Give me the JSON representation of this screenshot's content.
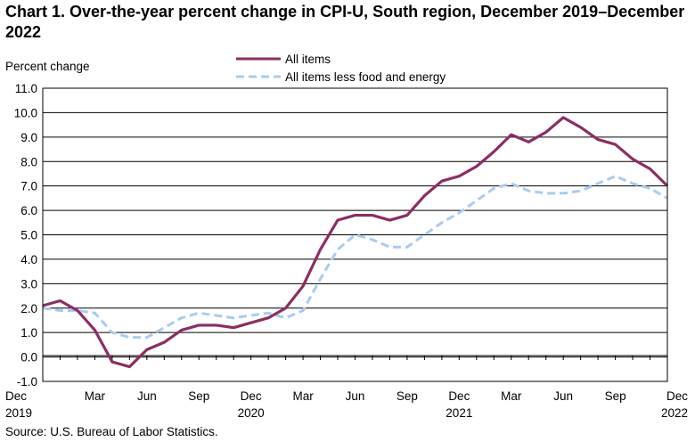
{
  "title": "Chart 1. Over-the-year percent change in CPI-U, South region, December 2019–December 2022",
  "source": "Source: U.S. Bureau of Labor Statistics.",
  "chart_data": {
    "type": "line",
    "ylabel": "Percent change",
    "ylim": [
      -1.0,
      11.0
    ],
    "yticks": [
      "-1.0",
      "0.0",
      "1.0",
      "2.0",
      "3.0",
      "4.0",
      "5.0",
      "6.0",
      "7.0",
      "8.0",
      "9.0",
      "10.0",
      "11.0"
    ],
    "x_count": 37,
    "xticks": [
      {
        "index": 0,
        "label": "Dec",
        "year": "2019"
      },
      {
        "index": 3,
        "label": "Mar",
        "year": ""
      },
      {
        "index": 6,
        "label": "Jun",
        "year": ""
      },
      {
        "index": 9,
        "label": "Sep",
        "year": ""
      },
      {
        "index": 12,
        "label": "Dec",
        "year": "2020"
      },
      {
        "index": 15,
        "label": "Mar",
        "year": ""
      },
      {
        "index": 18,
        "label": "Jun",
        "year": ""
      },
      {
        "index": 21,
        "label": "Sep",
        "year": ""
      },
      {
        "index": 24,
        "label": "Dec",
        "year": "2021"
      },
      {
        "index": 27,
        "label": "Mar",
        "year": ""
      },
      {
        "index": 30,
        "label": "Jun",
        "year": ""
      },
      {
        "index": 33,
        "label": "Sep",
        "year": ""
      },
      {
        "index": 36,
        "label": "Dec",
        "year": "2022"
      }
    ],
    "series": [
      {
        "name": "All items",
        "color": "#8b2e62",
        "style": "solid",
        "values": [
          2.1,
          2.3,
          1.9,
          1.1,
          -0.2,
          -0.4,
          0.3,
          0.6,
          1.1,
          1.3,
          1.3,
          1.2,
          1.4,
          1.6,
          2.0,
          2.9,
          4.4,
          5.6,
          5.8,
          5.8,
          5.6,
          5.8,
          6.6,
          7.2,
          7.4,
          7.8,
          8.4,
          9.1,
          8.8,
          9.2,
          9.8,
          9.4,
          8.9,
          8.7,
          8.1,
          7.7,
          7.0
        ]
      },
      {
        "name": "All items less food and energy",
        "color": "#a6cdf2",
        "style": "dashed",
        "values": [
          2.0,
          1.9,
          1.9,
          1.8,
          1.0,
          0.8,
          0.8,
          1.2,
          1.6,
          1.8,
          1.7,
          1.6,
          1.7,
          1.8,
          1.6,
          1.9,
          3.2,
          4.4,
          5.0,
          4.8,
          4.5,
          4.5,
          5.0,
          5.5,
          5.9,
          6.4,
          6.9,
          7.1,
          6.8,
          6.7,
          6.7,
          6.8,
          7.1,
          7.4,
          7.1,
          6.9,
          6.5
        ]
      }
    ]
  }
}
